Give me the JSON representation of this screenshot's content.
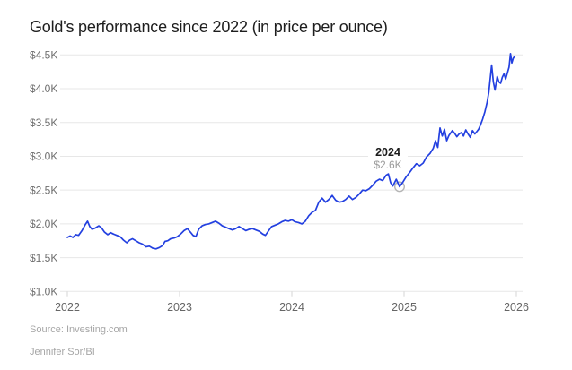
{
  "title": "Gold's performance since 2022 (in price per ounce)",
  "annotation": {
    "year": "2024",
    "value": "$2.6K"
  },
  "source_line": "Source: Investing.com",
  "byline": "Jennifer Sor/BI",
  "colors": {
    "background": "#ffffff",
    "line": "#2340e0",
    "grid": "#e7e7e7",
    "tick": "#d6d6d6",
    "title_text": "#1e1e1e",
    "y_label": "#6f6f6f",
    "x_label": "#666666",
    "annotation_year": "#1b1b1b",
    "annotation_value": "#9b9b9b",
    "source_text": "#a6a6a6",
    "marker_fill": "#ffffff",
    "marker_stroke": "#b5b5b5"
  },
  "chart_data": {
    "type": "line",
    "title": "Gold's performance since 2022 (in price per ounce)",
    "xlabel": "",
    "ylabel": "",
    "xlim": [
      2022,
      2026.06
    ],
    "ylim": [
      1.0,
      4.5
    ],
    "grid": "horizontal",
    "legend": "none",
    "x_ticks": [
      {
        "value": 2022,
        "label": "2022"
      },
      {
        "value": 2023,
        "label": "2023"
      },
      {
        "value": 2024,
        "label": "2024"
      },
      {
        "value": 2025,
        "label": "2025"
      },
      {
        "value": 2026,
        "label": "2026"
      }
    ],
    "y_ticks": [
      {
        "value": 4.5,
        "label": "$4.5K"
      },
      {
        "value": 4.0,
        "label": "$4.0K"
      },
      {
        "value": 3.5,
        "label": "$3.5K"
      },
      {
        "value": 3.0,
        "label": "$3.0K"
      },
      {
        "value": 2.5,
        "label": "$2.5K"
      },
      {
        "value": 2.0,
        "label": "$2.0K"
      },
      {
        "value": 1.5,
        "label": "$1.5K"
      },
      {
        "value": 1.0,
        "label": "$1.0K"
      }
    ],
    "marked_point": {
      "x": 2024.96,
      "y": 2.55,
      "year_label": "2024",
      "value_label": "$2.6K"
    },
    "series": [
      {
        "name": "Gold price",
        "points": [
          [
            2022.0,
            1.8
          ],
          [
            2022.025,
            1.82
          ],
          [
            2022.05,
            1.8
          ],
          [
            2022.075,
            1.84
          ],
          [
            2022.1,
            1.83
          ],
          [
            2022.13,
            1.9
          ],
          [
            2022.16,
            1.99
          ],
          [
            2022.18,
            2.04
          ],
          [
            2022.2,
            1.96
          ],
          [
            2022.22,
            1.92
          ],
          [
            2022.25,
            1.94
          ],
          [
            2022.28,
            1.97
          ],
          [
            2022.305,
            1.94
          ],
          [
            2022.33,
            1.88
          ],
          [
            2022.36,
            1.84
          ],
          [
            2022.385,
            1.87
          ],
          [
            2022.41,
            1.85
          ],
          [
            2022.44,
            1.83
          ],
          [
            2022.47,
            1.81
          ],
          [
            2022.5,
            1.76
          ],
          [
            2022.53,
            1.72
          ],
          [
            2022.555,
            1.76
          ],
          [
            2022.58,
            1.78
          ],
          [
            2022.61,
            1.75
          ],
          [
            2022.64,
            1.72
          ],
          [
            2022.67,
            1.7
          ],
          [
            2022.7,
            1.66
          ],
          [
            2022.73,
            1.67
          ],
          [
            2022.76,
            1.64
          ],
          [
            2022.79,
            1.63
          ],
          [
            2022.82,
            1.65
          ],
          [
            2022.85,
            1.68
          ],
          [
            2022.87,
            1.74
          ],
          [
            2022.895,
            1.75
          ],
          [
            2022.92,
            1.78
          ],
          [
            2022.95,
            1.79
          ],
          [
            2022.98,
            1.81
          ],
          [
            2023.01,
            1.85
          ],
          [
            2023.04,
            1.9
          ],
          [
            2023.07,
            1.93
          ],
          [
            2023.095,
            1.88
          ],
          [
            2023.12,
            1.83
          ],
          [
            2023.145,
            1.81
          ],
          [
            2023.17,
            1.92
          ],
          [
            2023.2,
            1.97
          ],
          [
            2023.23,
            1.99
          ],
          [
            2023.26,
            2.0
          ],
          [
            2023.29,
            2.02
          ],
          [
            2023.32,
            2.04
          ],
          [
            2023.35,
            2.01
          ],
          [
            2023.38,
            1.97
          ],
          [
            2023.41,
            1.95
          ],
          [
            2023.44,
            1.93
          ],
          [
            2023.47,
            1.91
          ],
          [
            2023.5,
            1.93
          ],
          [
            2023.53,
            1.96
          ],
          [
            2023.56,
            1.93
          ],
          [
            2023.59,
            1.9
          ],
          [
            2023.62,
            1.92
          ],
          [
            2023.65,
            1.93
          ],
          [
            2023.68,
            1.91
          ],
          [
            2023.71,
            1.89
          ],
          [
            2023.74,
            1.85
          ],
          [
            2023.765,
            1.83
          ],
          [
            2023.79,
            1.89
          ],
          [
            2023.82,
            1.96
          ],
          [
            2023.85,
            1.98
          ],
          [
            2023.88,
            2.0
          ],
          [
            2023.91,
            2.03
          ],
          [
            2023.94,
            2.05
          ],
          [
            2023.97,
            2.04
          ],
          [
            2024.0,
            2.06
          ],
          [
            2024.03,
            2.03
          ],
          [
            2024.06,
            2.02
          ],
          [
            2024.09,
            2.0
          ],
          [
            2024.12,
            2.04
          ],
          [
            2024.15,
            2.12
          ],
          [
            2024.18,
            2.17
          ],
          [
            2024.21,
            2.2
          ],
          [
            2024.24,
            2.32
          ],
          [
            2024.27,
            2.38
          ],
          [
            2024.3,
            2.32
          ],
          [
            2024.33,
            2.36
          ],
          [
            2024.36,
            2.42
          ],
          [
            2024.39,
            2.35
          ],
          [
            2024.42,
            2.32
          ],
          [
            2024.45,
            2.33
          ],
          [
            2024.48,
            2.36
          ],
          [
            2024.51,
            2.41
          ],
          [
            2024.54,
            2.36
          ],
          [
            2024.57,
            2.39
          ],
          [
            2024.6,
            2.44
          ],
          [
            2024.63,
            2.5
          ],
          [
            2024.66,
            2.49
          ],
          [
            2024.69,
            2.52
          ],
          [
            2024.72,
            2.57
          ],
          [
            2024.75,
            2.63
          ],
          [
            2024.78,
            2.66
          ],
          [
            2024.81,
            2.64
          ],
          [
            2024.84,
            2.72
          ],
          [
            2024.86,
            2.74
          ],
          [
            2024.88,
            2.61
          ],
          [
            2024.9,
            2.56
          ],
          [
            2024.93,
            2.66
          ],
          [
            2024.96,
            2.55
          ],
          [
            2024.99,
            2.62
          ],
          [
            2025.02,
            2.7
          ],
          [
            2025.05,
            2.76
          ],
          [
            2025.08,
            2.83
          ],
          [
            2025.11,
            2.89
          ],
          [
            2025.14,
            2.86
          ],
          [
            2025.17,
            2.9
          ],
          [
            2025.2,
            2.99
          ],
          [
            2025.23,
            3.04
          ],
          [
            2025.26,
            3.12
          ],
          [
            2025.28,
            3.23
          ],
          [
            2025.3,
            3.13
          ],
          [
            2025.32,
            3.42
          ],
          [
            2025.34,
            3.3
          ],
          [
            2025.36,
            3.4
          ],
          [
            2025.38,
            3.23
          ],
          [
            2025.4,
            3.31
          ],
          [
            2025.43,
            3.38
          ],
          [
            2025.45,
            3.34
          ],
          [
            2025.47,
            3.29
          ],
          [
            2025.49,
            3.33
          ],
          [
            2025.51,
            3.35
          ],
          [
            2025.53,
            3.3
          ],
          [
            2025.55,
            3.39
          ],
          [
            2025.57,
            3.33
          ],
          [
            2025.59,
            3.28
          ],
          [
            2025.61,
            3.38
          ],
          [
            2025.63,
            3.33
          ],
          [
            2025.65,
            3.37
          ],
          [
            2025.664,
            3.4
          ],
          [
            2025.68,
            3.46
          ],
          [
            2025.7,
            3.55
          ],
          [
            2025.72,
            3.66
          ],
          [
            2025.74,
            3.8
          ],
          [
            2025.755,
            3.95
          ],
          [
            2025.78,
            4.35
          ],
          [
            2025.795,
            4.1
          ],
          [
            2025.81,
            3.98
          ],
          [
            2025.83,
            4.18
          ],
          [
            2025.845,
            4.1
          ],
          [
            2025.86,
            4.08
          ],
          [
            2025.875,
            4.17
          ],
          [
            2025.89,
            4.22
          ],
          [
            2025.905,
            4.14
          ],
          [
            2025.92,
            4.23
          ],
          [
            2025.935,
            4.32
          ],
          [
            2025.948,
            4.52
          ],
          [
            2025.96,
            4.38
          ],
          [
            2025.972,
            4.45
          ],
          [
            2025.985,
            4.48
          ]
        ]
      }
    ]
  }
}
